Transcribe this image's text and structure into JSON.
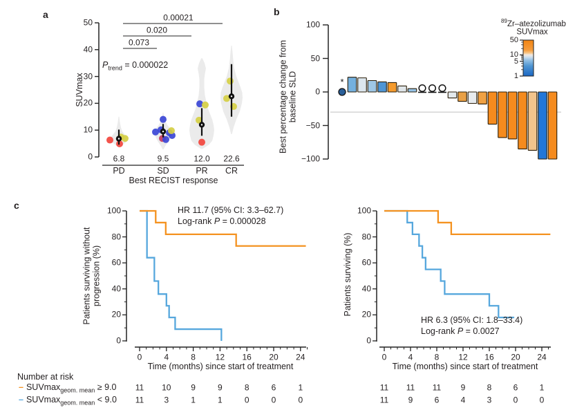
{
  "panel_labels": {
    "a": "a",
    "b": "b",
    "c": "c"
  },
  "chart_data": [
    {
      "id": "panel-a",
      "type": "scatter",
      "subtype": "violin-scatter",
      "ylabel": "SUVmax",
      "xlabel": "Best RECIST response",
      "ylim": [
        0,
        50
      ],
      "yticks": [
        0,
        10,
        20,
        30,
        40,
        50
      ],
      "categories": [
        "PD",
        "SD",
        "PR",
        "CR"
      ],
      "geometric_means": [
        "6.8",
        "9.5",
        "12.0",
        "22.6"
      ],
      "p_trend": {
        "p": "P",
        "sub": "trend",
        "rest": " = 0.000022"
      },
      "comparisons": [
        {
          "from": "PD",
          "to": "SD",
          "p": "0.073"
        },
        {
          "from": "PD",
          "to": "PR",
          "p": "0.020"
        },
        {
          "from": "PD",
          "to": "CR",
          "p": "0.00021"
        }
      ],
      "summary": [
        {
          "mean": 6.8,
          "lo": 4.6,
          "hi": 10.2
        },
        {
          "mean": 9.5,
          "lo": 7.3,
          "hi": 12.3
        },
        {
          "mean": 12.0,
          "lo": 7.9,
          "hi": 18.2
        },
        {
          "mean": 22.6,
          "lo": 15.0,
          "hi": 34.6
        }
      ],
      "violins": [
        [
          [
            3.6,
            0.5
          ],
          [
            4.5,
            5
          ],
          [
            5.5,
            10
          ],
          [
            6.5,
            12
          ],
          [
            7.5,
            11
          ],
          [
            8.5,
            8
          ],
          [
            9.5,
            5
          ],
          [
            11,
            3
          ],
          [
            13,
            1.5
          ],
          [
            15,
            0.5
          ]
        ],
        [
          [
            2.8,
            0.5
          ],
          [
            4,
            3
          ],
          [
            6,
            8
          ],
          [
            8,
            12
          ],
          [
            9,
            13
          ],
          [
            10,
            12
          ],
          [
            11,
            9
          ],
          [
            12,
            6
          ],
          [
            13.5,
            3
          ],
          [
            15,
            1.2
          ],
          [
            16.5,
            0.4
          ]
        ],
        [
          [
            3,
            1
          ],
          [
            4.5,
            10
          ],
          [
            6,
            15
          ],
          [
            8,
            17
          ],
          [
            10,
            18
          ],
          [
            12,
            17
          ],
          [
            14,
            15
          ],
          [
            16,
            12
          ],
          [
            18,
            9
          ],
          [
            20,
            7
          ],
          [
            23,
            4.5
          ],
          [
            26,
            3.5
          ],
          [
            29,
            3.5
          ],
          [
            31,
            4.5
          ],
          [
            33,
            6
          ],
          [
            35,
            4
          ],
          [
            36.8,
            0.8
          ]
        ],
        [
          [
            8.5,
            0.6
          ],
          [
            11,
            3
          ],
          [
            14,
            7
          ],
          [
            17,
            12
          ],
          [
            20,
            15
          ],
          [
            22,
            16
          ],
          [
            24,
            15.5
          ],
          [
            26,
            13
          ],
          [
            28,
            10
          ],
          [
            30,
            7
          ],
          [
            33,
            4
          ],
          [
            36,
            2.5
          ],
          [
            39,
            1.5
          ],
          [
            41.5,
            0.5
          ]
        ]
      ],
      "points": [
        [
          {
            "v": 6.3,
            "c": "red",
            "dx": -13
          },
          {
            "v": 6.9,
            "c": "yellow",
            "dx": 9
          },
          {
            "v": 4.9,
            "c": "red",
            "dx": 1
          },
          {
            "v": 7.4,
            "c": "yellow",
            "dx": 3
          }
        ],
        [
          {
            "v": 14.0,
            "c": "blue",
            "dx": 0
          },
          {
            "v": 10.1,
            "c": "blue",
            "dx": -3
          },
          {
            "v": 9.3,
            "c": "blue",
            "dx": -11
          },
          {
            "v": 9.0,
            "c": "blue",
            "dx": 9
          },
          {
            "v": 8.0,
            "c": "blue",
            "dx": 13
          },
          {
            "v": 9.8,
            "c": "yellow",
            "dx": 12
          },
          {
            "v": 6.9,
            "c": "crimson",
            "dx": -1
          },
          {
            "v": 6.5,
            "c": "blue",
            "dx": 4
          }
        ],
        [
          {
            "v": 19.8,
            "c": "blue",
            "dx": -3
          },
          {
            "v": 19.4,
            "c": "yellow",
            "dx": 5
          },
          {
            "v": 13.7,
            "c": "yellow",
            "dx": -4
          },
          {
            "v": 5.5,
            "c": "red",
            "dx": 0
          }
        ],
        [
          {
            "v": 28.3,
            "c": "yellow",
            "dx": -2
          },
          {
            "v": 21.8,
            "c": "yellow",
            "dx": -7
          },
          {
            "v": 18.8,
            "c": "yellow",
            "dx": 3
          }
        ]
      ],
      "palette": {
        "red": "#f2453d",
        "yellow": "#d5cf44",
        "blue": "#3b46d6",
        "crimson": "#c43a62",
        "violin": "#ebebeb"
      }
    },
    {
      "id": "panel-b",
      "type": "bar",
      "subtype": "waterfall",
      "ylabel_line1": "Best percentage change from",
      "ylabel_line2": "baseline SLD",
      "ylim": [
        -100,
        100
      ],
      "yticks": [
        100,
        50,
        0,
        -50,
        -100
      ],
      "reference_line": -30,
      "legend": {
        "sup": "89",
        "title": "Zr–atezolizumab",
        "subtitle": "SUVmax",
        "ticks": [
          50,
          10,
          5,
          1
        ],
        "minor_ticks": [
          2,
          3,
          4,
          6,
          7,
          8,
          9,
          20,
          30,
          40
        ],
        "top_color": "#f28413",
        "bottom_color": "#1a66c4"
      },
      "annotation": "*",
      "bars": [
        {
          "value": 0,
          "marker": "filled-circle",
          "color": "#2a5f99",
          "annotation": "*"
        },
        {
          "value": 22,
          "color": "#74b0de"
        },
        {
          "value": 21,
          "color": "#dce6ee"
        },
        {
          "value": 17,
          "color": "#9ec7e6"
        },
        {
          "value": 15,
          "color": "#4e95d5"
        },
        {
          "value": 14,
          "color": "#f59b2e"
        },
        {
          "value": 9,
          "color": "#dfe5e9"
        },
        {
          "value": 5,
          "color": "#94c1e4"
        },
        {
          "value": 0,
          "marker": "open-circle",
          "color": "#ffffff"
        },
        {
          "value": 0,
          "marker": "open-circle",
          "color": "#ffffff"
        },
        {
          "value": 0,
          "marker": "open-circle",
          "color": "#ffffff"
        },
        {
          "value": -9,
          "color": "#e3e9ed"
        },
        {
          "value": -14,
          "color": "#e9a045"
        },
        {
          "value": -17,
          "color": "#e7ebee"
        },
        {
          "value": -18,
          "color": "#f0a143"
        },
        {
          "value": -48,
          "color": "#f58b1e"
        },
        {
          "value": -68,
          "color": "#f58b1e"
        },
        {
          "value": -70,
          "color": "#f58b1e"
        },
        {
          "value": -85,
          "color": "#f58b1e"
        },
        {
          "value": -87,
          "color": "#f2c48c"
        },
        {
          "value": -100,
          "color": "#2277d8"
        },
        {
          "value": -100,
          "color": "#f58b1e"
        }
      ]
    },
    {
      "id": "panel-c-left",
      "type": "line",
      "subtype": "kaplan-meier",
      "ylabel_line1": "Patients surviving without",
      "ylabel_line2": "progression (%)",
      "xlabel": "Time (months) since start of treatment",
      "yticks": [
        0,
        20,
        40,
        60,
        80,
        100
      ],
      "xticks": [
        0,
        4,
        8,
        12,
        16,
        20,
        24
      ],
      "xlim": [
        0,
        25
      ],
      "ylim": [
        0,
        100
      ],
      "annotation": {
        "line1": "HR 11.7 (95% CI: 3.3–62.7)",
        "line2_prefix": "Log-rank ",
        "line2_p": "P",
        "line2_rest": " = 0.000028"
      },
      "series": [
        {
          "name": "SUVmax geom. mean >= 9.0",
          "color": "#f49220",
          "start": 100,
          "drops": [
            [
              2.4,
              91
            ],
            [
              3.9,
              82
            ],
            [
              14.4,
              73
            ]
          ],
          "end": 24.8
        },
        {
          "name": "SUVmax geom. mean < 9.0",
          "color": "#56a7dd",
          "start": 100,
          "drops": [
            [
              1.1,
              64
            ],
            [
              2.2,
              46
            ],
            [
              2.8,
              36
            ],
            [
              4.0,
              27
            ],
            [
              4.4,
              18
            ],
            [
              5.3,
              9
            ],
            [
              12.2,
              0
            ]
          ],
          "end": 12.2
        }
      ]
    },
    {
      "id": "panel-c-right",
      "type": "line",
      "subtype": "kaplan-meier",
      "ylabel_line1": "Patients surviving (%)",
      "xlabel": "Time (months) since start of treatment",
      "yticks": [
        0,
        20,
        40,
        60,
        80,
        100
      ],
      "xticks": [
        0,
        4,
        8,
        12,
        16,
        20,
        24
      ],
      "xlim": [
        0,
        25
      ],
      "ylim": [
        0,
        100
      ],
      "annotation": {
        "line1": "HR 6.3 (95% CI: 1.8–33.4)",
        "line2_prefix": "Log-rank ",
        "line2_p": "P",
        "line2_rest": " = 0.0027"
      },
      "series": [
        {
          "name": "SUVmax geom. mean >= 9.0",
          "color": "#f49220",
          "start": 100,
          "drops": [
            [
              8.2,
              91
            ],
            [
              10.2,
              82
            ]
          ],
          "end": 25.3
        },
        {
          "name": "SUVmax geom. mean < 9.0",
          "color": "#56a7dd",
          "start": 100,
          "drops": [
            [
              3.5,
              91
            ],
            [
              4.3,
              82
            ],
            [
              5.3,
              73
            ],
            [
              5.8,
              64
            ],
            [
              6.3,
              55
            ],
            [
              8.6,
              46
            ],
            [
              9.2,
              36
            ],
            [
              16.0,
              27
            ],
            [
              17.4,
              18
            ]
          ],
          "end": 19.8
        }
      ]
    }
  ],
  "risk_table": {
    "title": "Number at risk",
    "rows": [
      {
        "label": {
          "dash": "–",
          "prefix": "SUVmax",
          "sub": "geom. mean",
          "op": " ≥ 9.0"
        },
        "color": "#f49220",
        "left": [
          "11",
          "10",
          "9",
          "9",
          "8",
          "6",
          "1"
        ],
        "right": [
          "11",
          "11",
          "11",
          "9",
          "8",
          "6",
          "1"
        ]
      },
      {
        "label": {
          "dash": "–",
          "prefix": "SUVmax",
          "sub": "geom. mean",
          "op": " < 9.0"
        },
        "color": "#56a7dd",
        "left": [
          "11",
          "3",
          "1",
          "1",
          "0",
          "0",
          "0"
        ],
        "right": [
          "11",
          "9",
          "6",
          "4",
          "3",
          "0",
          "0"
        ]
      }
    ]
  }
}
